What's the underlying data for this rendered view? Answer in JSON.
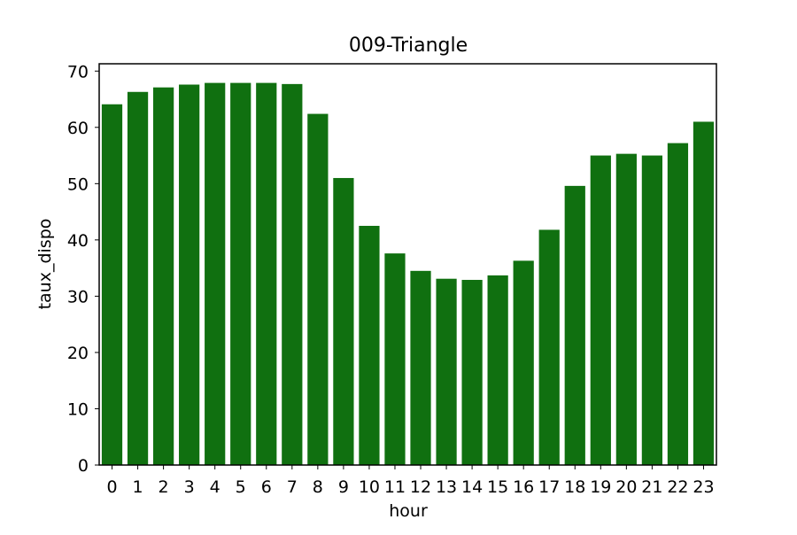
{
  "chart_data": {
    "type": "bar",
    "title": "009-Triangle",
    "xlabel": "hour",
    "ylabel": "taux_dispo",
    "categories": [
      "0",
      "1",
      "2",
      "3",
      "4",
      "5",
      "6",
      "7",
      "8",
      "9",
      "10",
      "11",
      "12",
      "13",
      "14",
      "15",
      "16",
      "17",
      "18",
      "19",
      "20",
      "21",
      "22",
      "23"
    ],
    "values": [
      64.1,
      66.3,
      67.1,
      67.6,
      67.9,
      67.9,
      67.9,
      67.7,
      62.4,
      51.0,
      42.5,
      37.6,
      34.5,
      33.1,
      32.9,
      33.7,
      36.3,
      41.8,
      49.6,
      55.0,
      55.3,
      55.0,
      57.2,
      61.0
    ],
    "yticks": [
      0,
      10,
      20,
      30,
      40,
      50,
      60,
      70
    ],
    "ylim": [
      0,
      71.3
    ],
    "bar_color": "#107010",
    "grid": false,
    "legend": false
  }
}
